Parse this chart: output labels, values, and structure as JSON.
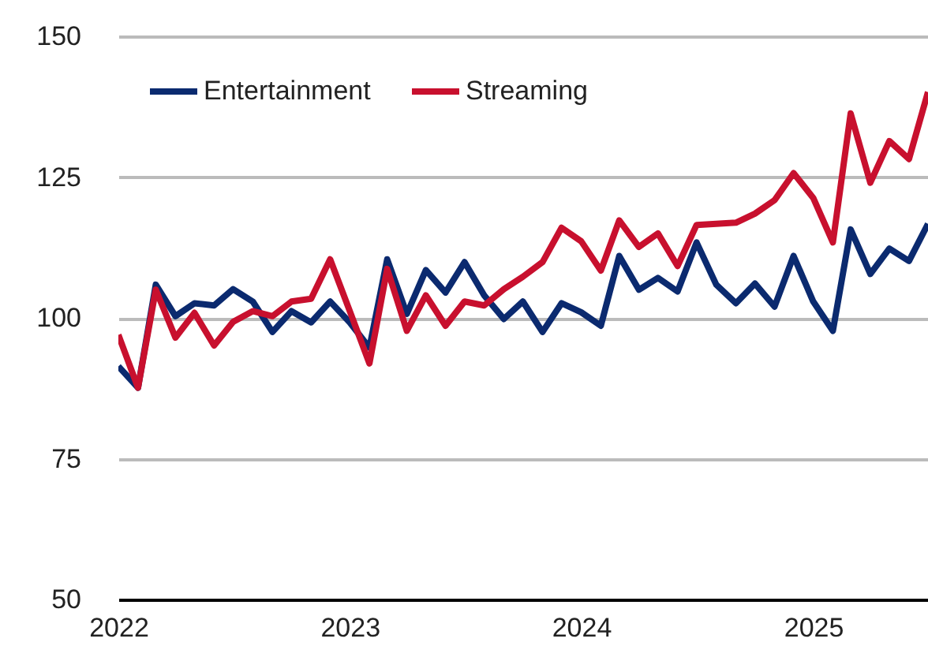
{
  "chart_data": {
    "type": "line",
    "x": [
      "2022-01",
      "2022-02",
      "2022-03",
      "2022-04",
      "2022-05",
      "2022-06",
      "2022-07",
      "2022-08",
      "2022-09",
      "2022-10",
      "2022-11",
      "2022-12",
      "2023-01",
      "2023-02",
      "2023-03",
      "2023-04",
      "2023-05",
      "2023-06",
      "2023-07",
      "2023-08",
      "2023-09",
      "2023-10",
      "2023-11",
      "2023-12",
      "2024-01",
      "2024-02",
      "2024-03",
      "2024-04",
      "2024-05",
      "2024-06",
      "2024-07",
      "2024-08",
      "2024-09",
      "2024-10",
      "2024-11",
      "2024-12",
      "2025-01",
      "2025-02",
      "2025-03",
      "2025-04",
      "2025-05",
      "2025-06",
      "2025-07"
    ],
    "series": [
      {
        "name": "Entertainment",
        "color": "#0b2a6f",
        "values": [
          91.4,
          87.6,
          105.9,
          100.3,
          102.6,
          102.2,
          105.1,
          102.9,
          97.5,
          101.2,
          99.2,
          102.9,
          99.2,
          94.7,
          110.4,
          100.7,
          108.5,
          104.5,
          109.9,
          104.0,
          99.8,
          102.9,
          97.5,
          102.6,
          101.0,
          98.6,
          111.0,
          105.0,
          107.1,
          104.7,
          113.4,
          105.9,
          102.6,
          106.1,
          102.0,
          111.0,
          102.9,
          97.7,
          115.7,
          107.8,
          112.3,
          110.1,
          116.7
        ]
      },
      {
        "name": "Streaming",
        "color": "#c8102e",
        "values": [
          97.0,
          87.6,
          105.0,
          96.5,
          100.9,
          95.1,
          99.3,
          101.2,
          100.3,
          102.9,
          103.4,
          110.4,
          101.2,
          91.9,
          108.7,
          97.7,
          104.0,
          98.6,
          102.9,
          102.2,
          105.1,
          107.3,
          109.9,
          116.0,
          113.6,
          108.4,
          117.3,
          112.6,
          115.0,
          109.2,
          116.5,
          116.7,
          116.9,
          118.5,
          120.9,
          125.7,
          121.3,
          113.4,
          136.3,
          124.0,
          131.4,
          128.2,
          140.1
        ]
      }
    ],
    "xlim": [
      "2022-01",
      "2025-07"
    ],
    "xticks": [
      "2022",
      "2023",
      "2024",
      "2025"
    ],
    "ylim": [
      50,
      150
    ],
    "yticks": [
      50,
      75,
      100,
      125,
      150
    ],
    "grid": "y",
    "legend": "top left",
    "line_style": "solid",
    "marker": "none"
  }
}
